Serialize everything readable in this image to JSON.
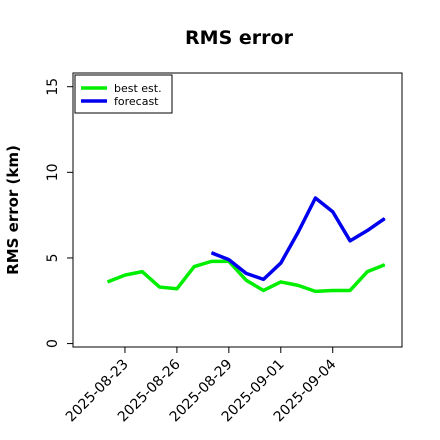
{
  "chart_data": {
    "type": "line",
    "title": "RMS error",
    "xlabel": "",
    "ylabel": "RMS error (km)",
    "xlim": [
      "2025-08-20",
      "2025-09-08"
    ],
    "ylim": [
      -0.2,
      15.8
    ],
    "yticks": [
      0,
      5,
      10,
      15
    ],
    "xticks": [
      "2025-08-23",
      "2025-08-26",
      "2025-08-29",
      "2025-09-01",
      "2025-09-04"
    ],
    "grid": false,
    "legend": "top-left",
    "series": [
      {
        "name": "best est.",
        "color": "#00ee00",
        "x": [
          "2025-08-22",
          "2025-08-23",
          "2025-08-24",
          "2025-08-25",
          "2025-08-26",
          "2025-08-27",
          "2025-08-28",
          "2025-08-29",
          "2025-08-30",
          "2025-08-31",
          "2025-09-01",
          "2025-09-02",
          "2025-09-03",
          "2025-09-04",
          "2025-09-05",
          "2025-09-06",
          "2025-09-07"
        ],
        "values": [
          3.6,
          4.0,
          4.2,
          3.3,
          3.2,
          4.5,
          4.8,
          4.8,
          3.7,
          3.1,
          3.6,
          3.4,
          3.05,
          3.1,
          3.1,
          4.2,
          4.6
        ]
      },
      {
        "name": "forecast",
        "color": "#0000ee",
        "x": [
          "2025-08-28",
          "2025-08-29",
          "2025-08-30",
          "2025-08-31",
          "2025-09-01",
          "2025-09-02",
          "2025-09-03",
          "2025-09-04",
          "2025-09-05",
          "2025-09-06",
          "2025-09-07"
        ],
        "values": [
          5.3,
          4.9,
          4.1,
          3.75,
          4.7,
          6.5,
          8.5,
          7.7,
          6.0,
          6.6,
          7.3
        ]
      }
    ]
  }
}
